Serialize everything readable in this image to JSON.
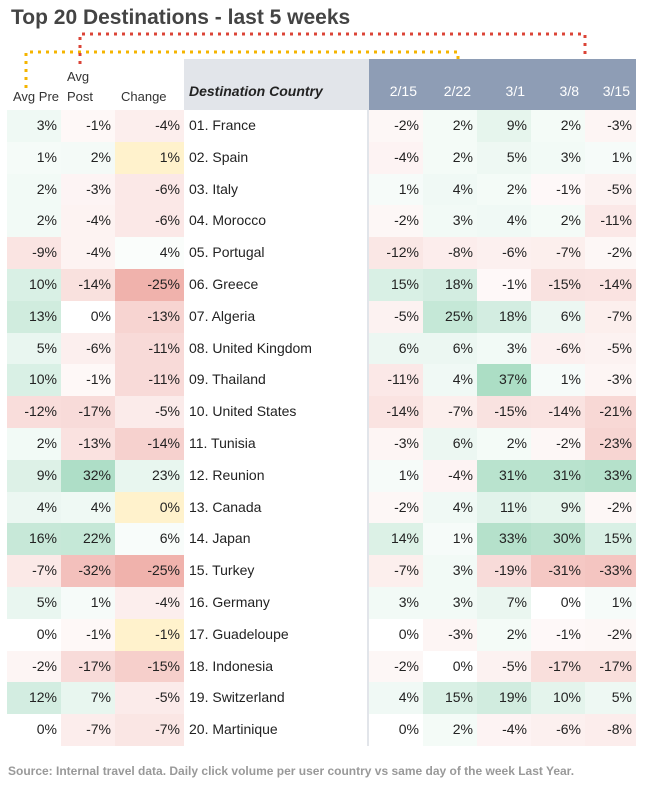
{
  "title": "Top 20 Destinations - last 5 weeks",
  "source": "Source: Internal travel data. Daily click volume per user country vs same day of the week Last Year.",
  "colors": {
    "positive": "#57bb8a",
    "negative": "#e67c73",
    "neutral": "#fff2cc",
    "header_dates": "#8e9db5",
    "header_country": "#e2e5ea",
    "annot_orange": "#f4b400",
    "annot_red": "#db4437"
  },
  "chart_data": {
    "type": "table",
    "columns": {
      "avg_pre": "Avg Pre",
      "avg_post": "Avg Post",
      "change": "Change",
      "country": "Destination Country",
      "weeks": [
        "2/15",
        "2/22",
        "3/1",
        "3/8",
        "3/15"
      ]
    },
    "rows": [
      {
        "pre": 3,
        "post": -1,
        "change": -4,
        "country": "01. France",
        "weeks": [
          -2,
          2,
          9,
          2,
          -3
        ]
      },
      {
        "pre": 1,
        "post": 2,
        "change": 1,
        "country": "02. Spain",
        "weeks": [
          -4,
          2,
          5,
          3,
          1
        ]
      },
      {
        "pre": 2,
        "post": -3,
        "change": -6,
        "country": "03. Italy",
        "weeks": [
          1,
          4,
          2,
          -1,
          -5
        ]
      },
      {
        "pre": 2,
        "post": -4,
        "change": -6,
        "country": "04. Morocco",
        "weeks": [
          -2,
          3,
          4,
          2,
          -11
        ]
      },
      {
        "pre": -9,
        "post": -4,
        "change": 4,
        "country": "05. Portugal",
        "weeks": [
          -12,
          -8,
          -6,
          -7,
          -2
        ]
      },
      {
        "pre": 10,
        "post": -14,
        "change": -25,
        "country": "06. Greece",
        "weeks": [
          15,
          18,
          -1,
          -15,
          -14
        ]
      },
      {
        "pre": 13,
        "post": 0,
        "change": -13,
        "country": "07. Algeria",
        "weeks": [
          -5,
          25,
          18,
          6,
          -7
        ]
      },
      {
        "pre": 5,
        "post": -6,
        "change": -11,
        "country": "08. United Kingdom",
        "weeks": [
          6,
          6,
          3,
          -6,
          -5
        ]
      },
      {
        "pre": 10,
        "post": -1,
        "change": -11,
        "country": "09. Thailand",
        "weeks": [
          -11,
          4,
          37,
          1,
          -3
        ]
      },
      {
        "pre": -12,
        "post": -17,
        "change": -5,
        "country": "10. United States",
        "weeks": [
          -14,
          -7,
          -15,
          -14,
          -21
        ]
      },
      {
        "pre": 2,
        "post": -13,
        "change": -14,
        "country": "11. Tunisia",
        "weeks": [
          -3,
          6,
          2,
          -2,
          -23
        ]
      },
      {
        "pre": 9,
        "post": 32,
        "change": 23,
        "country": "12. Reunion",
        "weeks": [
          1,
          -4,
          31,
          31,
          33
        ]
      },
      {
        "pre": 4,
        "post": 4,
        "change": 0,
        "country": "13. Canada",
        "weeks": [
          -2,
          4,
          11,
          9,
          -2
        ]
      },
      {
        "pre": 16,
        "post": 22,
        "change": 6,
        "country": "14. Japan",
        "weeks": [
          14,
          1,
          33,
          30,
          15
        ]
      },
      {
        "pre": -7,
        "post": -32,
        "change": -25,
        "country": "15. Turkey",
        "weeks": [
          -7,
          3,
          -19,
          -31,
          -33
        ]
      },
      {
        "pre": 5,
        "post": 1,
        "change": -4,
        "country": "16. Germany",
        "weeks": [
          3,
          3,
          7,
          0,
          1
        ]
      },
      {
        "pre": 0,
        "post": -1,
        "change": -1,
        "country": "17. Guadeloupe",
        "weeks": [
          0,
          -3,
          2,
          -1,
          -2
        ]
      },
      {
        "pre": -2,
        "post": -17,
        "change": -15,
        "country": "18. Indonesia",
        "weeks": [
          -2,
          0,
          -5,
          -17,
          -17
        ]
      },
      {
        "pre": 12,
        "post": 7,
        "change": -5,
        "country": "19. Switzerland",
        "weeks": [
          4,
          15,
          19,
          10,
          5
        ]
      },
      {
        "pre": 0,
        "post": -7,
        "change": -7,
        "country": "20. Martinique",
        "weeks": [
          0,
          2,
          -4,
          -6,
          -8
        ]
      }
    ]
  }
}
